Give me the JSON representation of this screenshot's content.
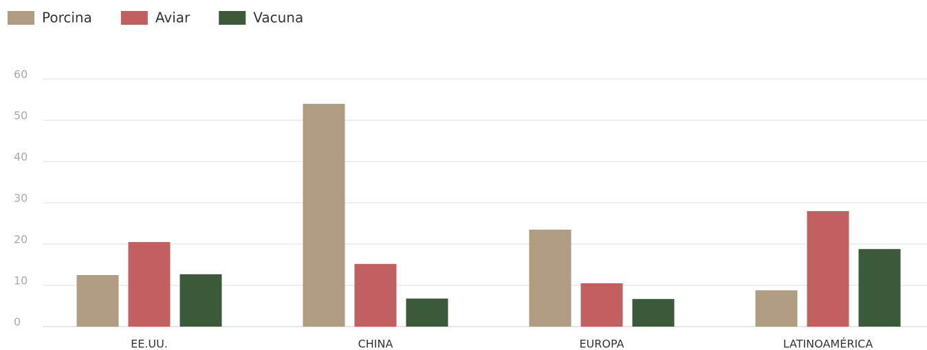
{
  "chart_data": {
    "type": "bar",
    "categories": [
      "EE.UU.",
      "CHINA",
      "EUROPA",
      "LATINOAMÉRICA"
    ],
    "series": [
      {
        "name": "Porcina",
        "color": "#b09c80",
        "values": [
          12.5,
          54,
          23.5,
          8.8
        ]
      },
      {
        "name": "Aviar",
        "color": "#c26060",
        "values": [
          20.5,
          15.2,
          10.5,
          28
        ]
      },
      {
        "name": "Vacuna",
        "color": "#3a5a3a",
        "values": [
          12.7,
          6.8,
          6.7,
          18.8
        ]
      }
    ],
    "ylim": [
      0,
      60
    ],
    "yticks": [
      0,
      10,
      20,
      30,
      40,
      50,
      60
    ],
    "grid": true,
    "legend": "top-left"
  }
}
